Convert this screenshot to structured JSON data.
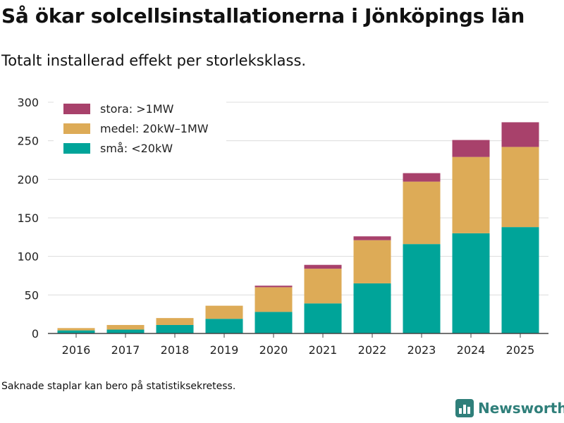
{
  "title": "Så ökar solcellsinstallationerna i Jönköpings län",
  "subtitle": "Totalt installerad effekt per storleksklass.",
  "footnote": "Saknade staplar kan bero på statistiksekretess.",
  "brand": {
    "name": "Newsworthy",
    "icon": "bar-chart-logo-icon",
    "color": "#2f7f7a"
  },
  "chart_data": {
    "type": "bar",
    "stacked": true,
    "categories": [
      "2016",
      "2017",
      "2018",
      "2019",
      "2020",
      "2021",
      "2022",
      "2023",
      "2024",
      "2025"
    ],
    "series": [
      {
        "name": "små: <20kW",
        "color": "#00a499",
        "values": [
          4,
          5,
          11,
          19,
          28,
          39,
          65,
          116,
          130,
          138
        ]
      },
      {
        "name": "medel: 20kW–1MW",
        "color": "#ddab57",
        "values": [
          3,
          6,
          9,
          17,
          32,
          45,
          56,
          81,
          99,
          104
        ]
      },
      {
        "name": "stora: >1MW",
        "color": "#a8416b",
        "values": [
          0,
          0,
          0,
          0,
          2,
          5,
          5,
          11,
          22,
          32
        ]
      }
    ],
    "legend_order": [
      "stora: >1MW",
      "medel: 20kW–1MW",
      "små: <20kW"
    ],
    "yticks": [
      0,
      50,
      100,
      150,
      200,
      250,
      300
    ],
    "ylim": [
      0,
      300
    ],
    "xlabel": "",
    "ylabel": "",
    "grid": true,
    "legend_position": "top-left"
  }
}
